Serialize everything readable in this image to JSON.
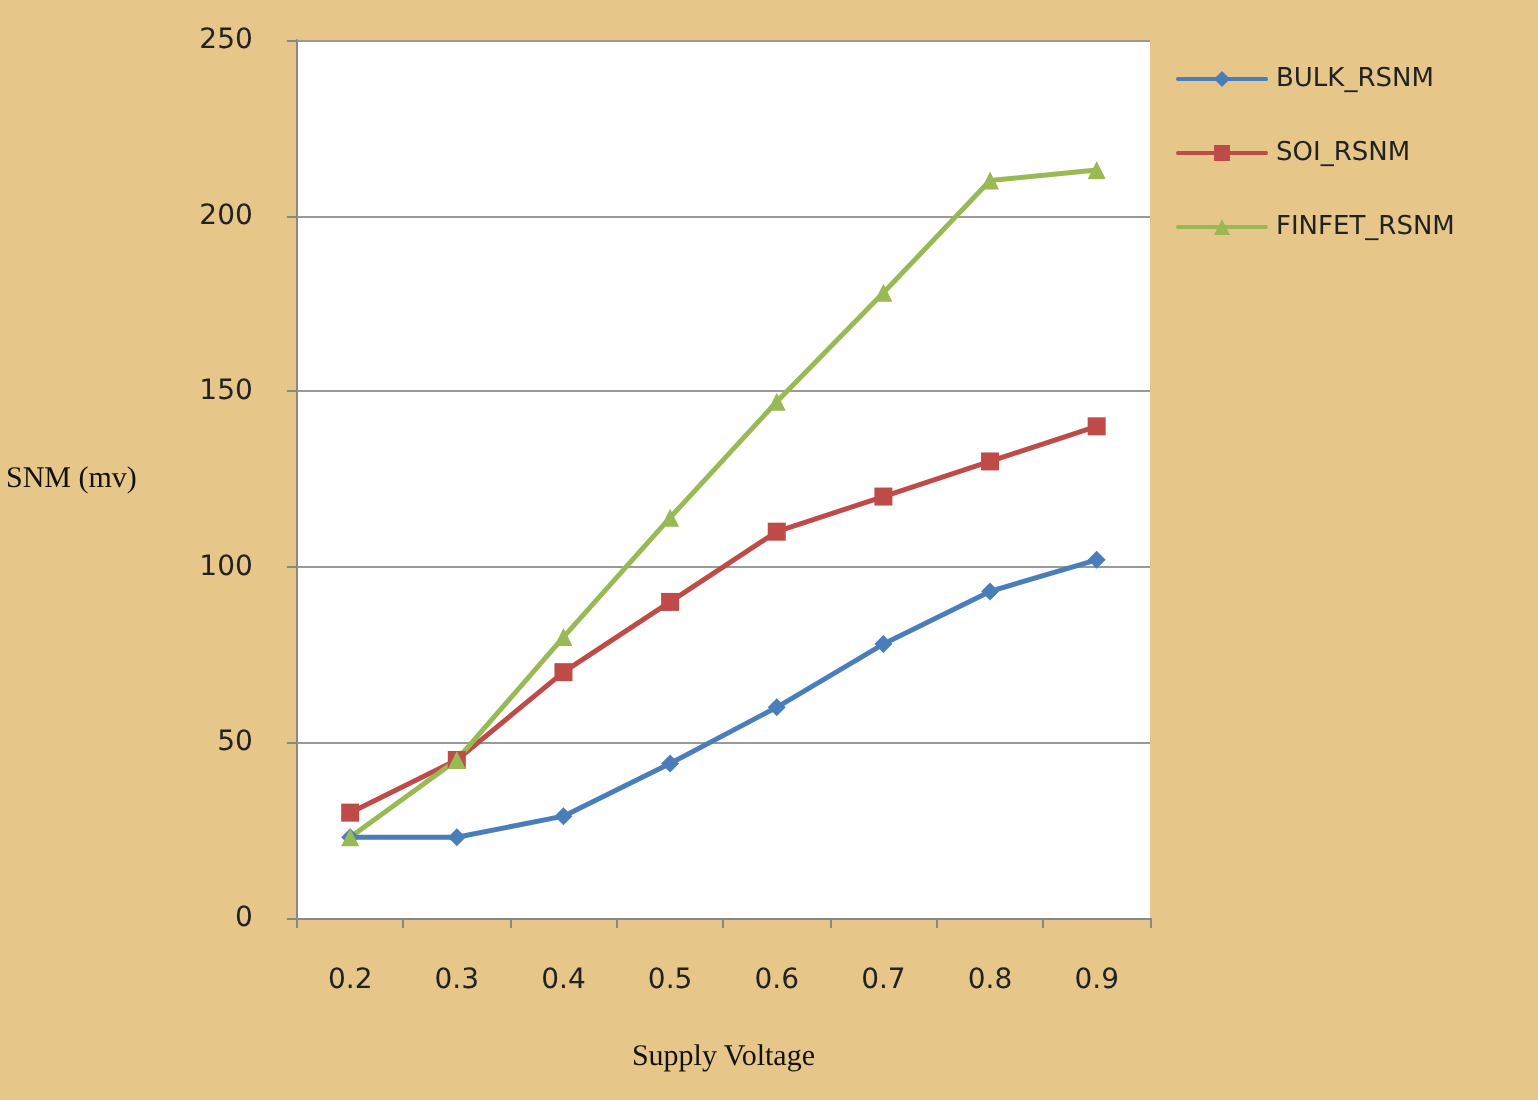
{
  "chart_data": {
    "type": "line",
    "xlabel": "Supply Voltage",
    "ylabel": "SNM (mv)",
    "categories": [
      "0.2",
      "0.3",
      "0.4",
      "0.5",
      "0.6",
      "0.7",
      "0.8",
      "0.9"
    ],
    "series": [
      {
        "name": "BULK_RSNM",
        "color": "#4a7ebb",
        "marker": "diamond",
        "values": [
          23,
          23,
          29,
          44,
          60,
          78,
          93,
          102
        ]
      },
      {
        "name": "SOI_RSNM",
        "color": "#be4b48",
        "marker": "square",
        "values": [
          30,
          45,
          70,
          90,
          110,
          120,
          130,
          140
        ]
      },
      {
        "name": "FINFET_RSNM",
        "color": "#98b954",
        "marker": "triangle",
        "values": [
          23,
          45,
          80,
          114,
          147,
          178,
          210,
          213
        ]
      }
    ],
    "ylim": [
      0,
      250
    ],
    "yticks": [
      0,
      50,
      100,
      150,
      200,
      250
    ],
    "grid": "y",
    "legend": "right",
    "line_style": "solid"
  }
}
